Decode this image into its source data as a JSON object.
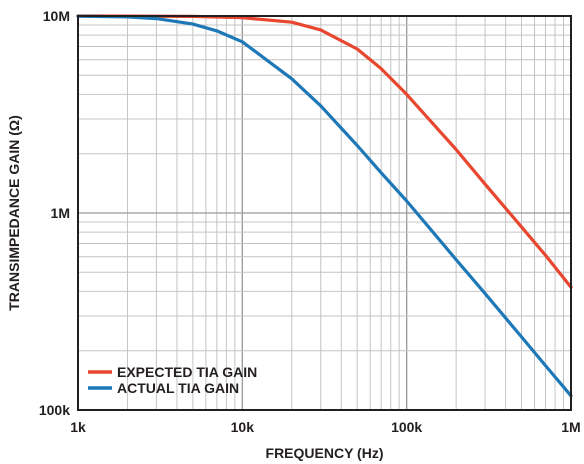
{
  "chart_data": {
    "type": "line",
    "xlabel": "FREQUENCY (Hz)",
    "ylabel": "TRANSIMPEDANCE GAIN (Ω)",
    "x_scale": "log",
    "y_scale": "log",
    "xlim": [
      1000,
      1000000
    ],
    "ylim": [
      100000,
      10000000
    ],
    "x_ticks": [
      {
        "value": 1000,
        "label": "1k"
      },
      {
        "value": 10000,
        "label": "10k"
      },
      {
        "value": 100000,
        "label": "100k"
      },
      {
        "value": 1000000,
        "label": "1M"
      }
    ],
    "y_ticks": [
      {
        "value": 100000,
        "label": "100k"
      },
      {
        "value": 1000000,
        "label": "1M"
      },
      {
        "value": 10000000,
        "label": "10M"
      }
    ],
    "grid": true,
    "legend_position": "bottom-left",
    "series": [
      {
        "name": "EXPECTED TIA GAIN",
        "color": "#e8462f",
        "x": [
          1000,
          2000,
          5000,
          10000,
          20000,
          30000,
          50000,
          70000,
          100000,
          200000,
          300000,
          500000,
          700000,
          1000000
        ],
        "y": [
          10000000,
          9990000,
          9950000,
          9800000,
          9300000,
          8500000,
          6800000,
          5400000,
          4000000,
          2100000,
          1400000,
          850000,
          610000,
          420000
        ]
      },
      {
        "name": "ACTUAL TIA GAIN",
        "color": "#1d78b7",
        "x": [
          1000,
          2000,
          3000,
          5000,
          7000,
          10000,
          20000,
          30000,
          50000,
          70000,
          100000,
          200000,
          300000,
          500000,
          700000,
          1000000
        ],
        "y": [
          9980000,
          9900000,
          9700000,
          9100000,
          8400000,
          7400000,
          4800000,
          3500000,
          2200000,
          1600000,
          1150000,
          580000,
          390000,
          235000,
          168000,
          118000
        ]
      }
    ]
  }
}
